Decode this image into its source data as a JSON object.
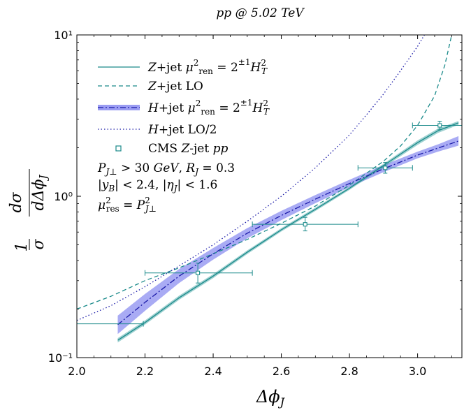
{
  "chart_data": {
    "type": "line",
    "title": "pp @ 5.02 TeV",
    "xlabel": "Δφ_J",
    "ylabel": "1/σ dσ/dΔφ_J",
    "xlim": [
      2.0,
      3.13
    ],
    "ylim": [
      0.1,
      10
    ],
    "yscale": "log",
    "x_ticks": [
      2.0,
      2.2,
      2.4,
      2.6,
      2.8,
      3.0
    ],
    "x_tick_labels": [
      "2.0",
      "2.2",
      "2.4",
      "2.6",
      "2.8",
      "3.0"
    ],
    "y_ticks": [
      0.1,
      1,
      10
    ],
    "y_tick_labels": [
      "10⁻¹",
      "10⁰",
      "10¹"
    ],
    "grid": false,
    "legend_position": "top-left",
    "colors": {
      "zjet": "#1a8a8a",
      "hjet": "#1a1aa8",
      "hjet_band": "#9a9cf2",
      "data": "#1a8a8a"
    },
    "series": [
      {
        "name": "Z+jet μ²ren = 2^±1 H²T",
        "style": "solid-band",
        "x": [
          2.12,
          2.2,
          2.3,
          2.4,
          2.5,
          2.6,
          2.7,
          2.8,
          2.9,
          3.0,
          3.06,
          3.12
        ],
        "y": [
          0.128,
          0.165,
          0.235,
          0.32,
          0.45,
          0.62,
          0.83,
          1.12,
          1.55,
          2.15,
          2.55,
          2.85
        ],
        "y_low": [
          0.124,
          0.16,
          0.228,
          0.311,
          0.438,
          0.605,
          0.81,
          1.095,
          1.51,
          2.08,
          2.47,
          2.77
        ],
        "y_high": [
          0.132,
          0.17,
          0.242,
          0.329,
          0.462,
          0.635,
          0.85,
          1.145,
          1.59,
          2.22,
          2.63,
          2.93
        ]
      },
      {
        "name": "Z+jet LO",
        "style": "dashed",
        "x": [
          2.0,
          2.1,
          2.2,
          2.3,
          2.4,
          2.5,
          2.6,
          2.7,
          2.8,
          2.9,
          2.95,
          3.0,
          3.05,
          3.08,
          3.1
        ],
        "y": [
          0.2,
          0.24,
          0.3,
          0.36,
          0.44,
          0.54,
          0.68,
          0.87,
          1.17,
          1.65,
          2.05,
          2.75,
          4.2,
          6.5,
          10.0
        ]
      },
      {
        "name": "H+jet μ²ren = 2^±1 H²T",
        "style": "dashdot-band",
        "x": [
          2.12,
          2.2,
          2.3,
          2.4,
          2.5,
          2.6,
          2.7,
          2.8,
          2.9,
          3.0,
          3.06,
          3.12
        ],
        "y": [
          0.16,
          0.22,
          0.32,
          0.44,
          0.59,
          0.76,
          0.96,
          1.2,
          1.48,
          1.8,
          1.99,
          2.2
        ],
        "y_low": [
          0.14,
          0.195,
          0.29,
          0.405,
          0.548,
          0.712,
          0.906,
          1.14,
          1.41,
          1.72,
          1.89,
          2.06
        ],
        "y_high": [
          0.182,
          0.248,
          0.354,
          0.478,
          0.635,
          0.812,
          1.018,
          1.265,
          1.56,
          1.89,
          2.1,
          2.36
        ]
      },
      {
        "name": "H+jet LO/2",
        "style": "dotted",
        "x": [
          2.0,
          2.1,
          2.2,
          2.3,
          2.4,
          2.5,
          2.6,
          2.7,
          2.8,
          2.85,
          2.9,
          2.95,
          3.0,
          3.02
        ],
        "y": [
          0.17,
          0.21,
          0.275,
          0.37,
          0.5,
          0.7,
          1.0,
          1.5,
          2.4,
          3.2,
          4.3,
          6.0,
          8.5,
          10.0
        ]
      }
    ],
    "data_points": {
      "name": "CMS Z-jet pp",
      "x": [
        1.99,
        2.355,
        2.67,
        2.905,
        3.065
      ],
      "y": [
        0.162,
        0.335,
        0.67,
        1.5,
        2.75
      ],
      "x_err_low": [
        1.98,
        2.2,
        2.515,
        2.825,
        2.985
      ],
      "x_err_high": [
        2.195,
        2.515,
        2.825,
        2.985,
        3.14
      ],
      "y_err_low": [
        0.162,
        0.29,
        0.61,
        1.39,
        2.6
      ],
      "y_err_high": [
        0.162,
        0.385,
        0.74,
        1.62,
        2.92
      ]
    },
    "annotations": [
      "P_J⊥ > 30 GeV, R_J = 0.3",
      "|y_B| < 2.4, |η_J| < 1.6",
      "μ²res = P²J⊥"
    ]
  }
}
